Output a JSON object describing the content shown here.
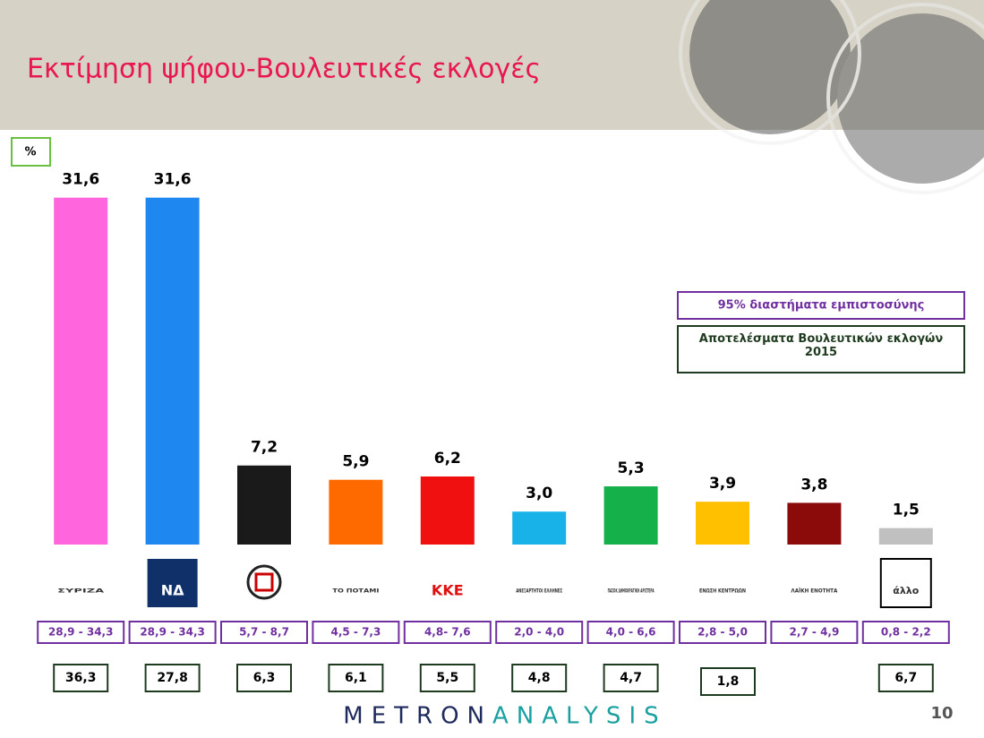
{
  "chart_data": {
    "type": "bar",
    "title": "Εκτίμηση ψήφου-Βουλευτικές εκλογές",
    "unit_label": "%",
    "categories": [
      "ΣΥΡΙΖΑ",
      "ΝΔ",
      null,
      "ΤΟ ΠΟΤΑΜΙ",
      "ΚΚΕ",
      "ΑΝΕΞΑΡΤΗΤΟΙ ΕΛΛΗΝΕΣ",
      "ΠΑΣΟΚ ΔΗΜΟΚΡΑΤΙΚΗ ΑΡΙΣΤΕΡΑ",
      "ΕΝΩΣΗ ΚΕΝΤΡΩΩΝ",
      "ΛΑΪΚΗ ΕΝΟΤΗΤΑ",
      "άλλο"
    ],
    "values": [
      31.6,
      31.6,
      7.2,
      5.9,
      6.2,
      3.0,
      5.3,
      3.9,
      3.8,
      1.5
    ],
    "value_labels": [
      "31,6",
      "31,6",
      "7,2",
      "5,9",
      "6,2",
      "3,0",
      "5,3",
      "3,9",
      "3,8",
      "1,5"
    ],
    "colors": [
      "#ff66dd",
      "#1f87f0",
      "#1a1a1a",
      "#ff6a00",
      "#f01010",
      "#19b2e8",
      "#15b04a",
      "#ffc000",
      "#8b0a0a",
      "#c0c0c0"
    ],
    "ylim": [
      0,
      35
    ],
    "confidence_intervals": [
      "28,9 - 34,3",
      "28,9 - 34,3",
      "5,7 - 8,7",
      "4,5 - 7,3",
      "4,8- 7,6",
      "2,0 - 4,0",
      "4,0 - 6,6",
      "2,8 - 5,0",
      "2,7 - 4,9",
      "0,8 - 2,2"
    ],
    "results_2015": {
      "values": [
        36.3,
        27.8,
        6.3,
        6.1,
        5.5,
        4.8,
        4.7,
        1.8,
        null,
        6.7
      ],
      "value_labels": [
        "36,3",
        "27,8",
        "6,3",
        "6,1",
        "5,5",
        "4,8",
        "4,7",
        "1,8",
        null,
        "6,7"
      ]
    },
    "legend": [
      "95% διαστήματα εμπιστοσύνης",
      "Αποτελέσματα Βουλευτικών εκλογών 2015"
    ]
  },
  "footer": {
    "brand_first": "METRON",
    "brand_second": "ANALYSIS",
    "page_number": "10"
  }
}
